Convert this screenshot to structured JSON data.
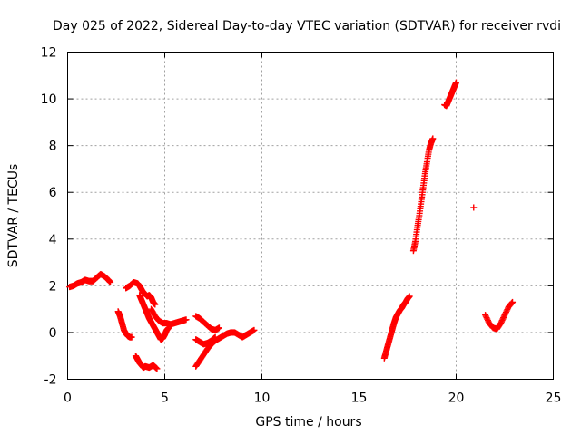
{
  "chart_data": {
    "type": "scatter",
    "title": "Day 025 of 2022, Sidereal Day-to-day VTEC variation (SDTVAR) for receiver rvdi",
    "xlabel": "GPS time / hours",
    "ylabel": "SDTVAR / TECUs",
    "xlim": [
      0,
      25
    ],
    "ylim": [
      -2,
      12
    ],
    "x_ticks": [
      0,
      5,
      10,
      15,
      20,
      25
    ],
    "y_ticks": [
      -2,
      0,
      2,
      4,
      6,
      8,
      10,
      12
    ],
    "grid": true,
    "legend": "none",
    "marker": "plus",
    "color": "#ff0000",
    "series": [
      {
        "values_x": [
          0.1,
          0.3,
          0.5,
          0.7,
          0.9,
          1.1,
          1.3,
          1.5,
          1.7,
          1.9,
          2.1,
          2.2
        ],
        "values_y": [
          1.95,
          2.0,
          2.1,
          2.15,
          2.25,
          2.2,
          2.2,
          2.35,
          2.5,
          2.4,
          2.25,
          2.15
        ]
      },
      {
        "values_x": [
          2.6,
          2.7,
          2.8,
          2.9,
          3.0,
          3.1,
          3.2,
          3.3
        ],
        "values_y": [
          0.9,
          0.7,
          0.4,
          0.1,
          -0.05,
          -0.15,
          -0.2,
          -0.2
        ]
      },
      {
        "values_x": [
          3.0,
          3.2,
          3.4,
          3.6,
          3.7,
          3.8,
          3.9,
          4.0,
          4.1,
          4.2,
          4.3,
          4.4,
          4.5
        ],
        "values_y": [
          1.9,
          2.0,
          2.15,
          2.1,
          2.0,
          1.85,
          1.7,
          1.65,
          1.55,
          1.6,
          1.5,
          1.3,
          1.2
        ]
      },
      {
        "values_x": [
          3.7,
          3.8,
          3.9,
          4.0,
          4.1,
          4.2,
          4.3,
          4.4,
          4.5,
          4.6,
          4.7,
          4.8,
          4.9,
          5.0,
          5.1,
          5.2
        ],
        "values_y": [
          1.6,
          1.4,
          1.2,
          1.0,
          0.8,
          0.6,
          0.45,
          0.3,
          0.15,
          0.0,
          -0.15,
          -0.3,
          -0.25,
          -0.1,
          0.1,
          0.2
        ]
      },
      {
        "values_x": [
          4.3,
          4.5,
          4.7,
          4.9,
          5.1,
          5.3,
          5.5,
          5.7,
          5.9,
          6.1
        ],
        "values_y": [
          1.0,
          0.7,
          0.5,
          0.4,
          0.4,
          0.35,
          0.4,
          0.45,
          0.5,
          0.55
        ]
      },
      {
        "values_x": [
          3.5,
          3.6,
          3.7,
          3.8,
          3.9,
          4.0,
          4.2,
          4.4,
          4.6
        ],
        "values_y": [
          -1.0,
          -1.15,
          -1.3,
          -1.4,
          -1.5,
          -1.45,
          -1.5,
          -1.4,
          -1.55
        ]
      },
      {
        "values_x": [
          6.6,
          6.8,
          7.0,
          7.2,
          7.4,
          7.6,
          7.8
        ],
        "values_y": [
          0.7,
          0.6,
          0.45,
          0.3,
          0.15,
          0.1,
          0.2
        ]
      },
      {
        "values_x": [
          6.6,
          6.8,
          7.0,
          7.2,
          7.4,
          7.6
        ],
        "values_y": [
          -0.3,
          -0.4,
          -0.5,
          -0.45,
          -0.35,
          -0.2
        ]
      },
      {
        "values_x": [
          6.6,
          6.8,
          7.0,
          7.2,
          7.4,
          7.6,
          7.8,
          8.0,
          8.2,
          8.4,
          8.6,
          8.8,
          9.0,
          9.2,
          9.4,
          9.6
        ],
        "values_y": [
          -1.45,
          -1.2,
          -0.95,
          -0.7,
          -0.5,
          -0.35,
          -0.25,
          -0.15,
          -0.05,
          0.0,
          0.0,
          -0.1,
          -0.2,
          -0.1,
          0.0,
          0.1
        ]
      },
      {
        "values_x": [
          16.3,
          16.4,
          16.5,
          16.6,
          16.7,
          16.8,
          16.9,
          17.0,
          17.1,
          17.2,
          17.3,
          17.4,
          17.5,
          17.6
        ],
        "values_y": [
          -1.1,
          -0.8,
          -0.5,
          -0.2,
          0.1,
          0.4,
          0.65,
          0.8,
          0.95,
          1.05,
          1.2,
          1.3,
          1.45,
          1.55
        ]
      },
      {
        "values_x": [
          17.8,
          17.9,
          18.0,
          18.1,
          18.2,
          18.3,
          18.4,
          18.5,
          18.6,
          18.7,
          18.8
        ],
        "values_y": [
          3.5,
          3.9,
          4.5,
          5.0,
          5.6,
          6.2,
          6.8,
          7.3,
          7.8,
          8.1,
          8.3
        ]
      },
      {
        "values_x": [
          19.4,
          19.5,
          19.6,
          19.7,
          19.8,
          19.9,
          20.0
        ],
        "values_y": [
          9.75,
          9.7,
          9.9,
          10.1,
          10.3,
          10.5,
          10.7
        ]
      },
      {
        "values_x": [
          20.9
        ],
        "values_y": [
          5.35
        ]
      },
      {
        "values_x": [
          21.5,
          21.7,
          21.9,
          22.1,
          22.3,
          22.5,
          22.7,
          22.9
        ],
        "values_y": [
          0.75,
          0.4,
          0.2,
          0.15,
          0.4,
          0.75,
          1.1,
          1.3
        ]
      }
    ]
  }
}
